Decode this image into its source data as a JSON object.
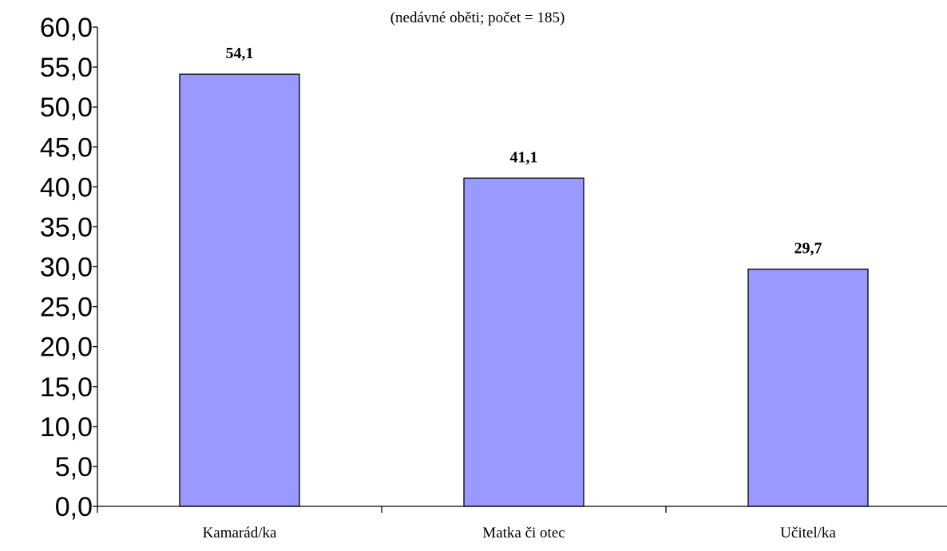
{
  "chart_data": {
    "type": "bar",
    "subtitle": "(nedávné oběti; počet = 185)",
    "categories": [
      "Kamarád/ka",
      "Matka či otec",
      "Učitel/ka"
    ],
    "values": [
      54.1,
      41.1,
      29.7
    ],
    "data_labels": [
      "54,1",
      "41,1",
      "29,7"
    ],
    "ylim": [
      0,
      60
    ],
    "yticks": [
      "0,0",
      "5,0",
      "10,0",
      "15,0",
      "20,0",
      "25,0",
      "30,0",
      "35,0",
      "40,0",
      "45,0",
      "50,0",
      "55,0",
      "60,0"
    ],
    "grid": false,
    "legend": "none",
    "colors": {
      "bar": "#9999ff",
      "axis": "#000000"
    }
  }
}
